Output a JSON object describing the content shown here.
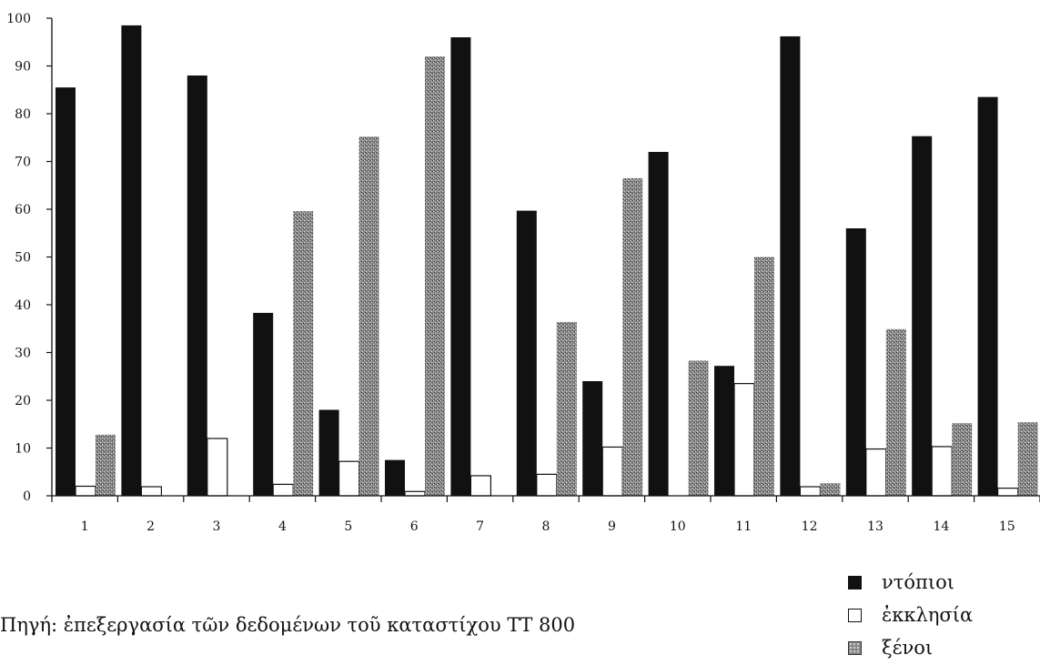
{
  "chart_data": {
    "type": "bar",
    "categories": [
      "1",
      "2",
      "3",
      "4",
      "5",
      "6",
      "7",
      "8",
      "9",
      "10",
      "11",
      "12",
      "13",
      "14",
      "15"
    ],
    "series": [
      {
        "name": "ντόπιοι",
        "color": "#111111",
        "pattern": "solid",
        "values": [
          85.5,
          98.5,
          88,
          38.3,
          18,
          7.5,
          96,
          59.7,
          24,
          72,
          27.2,
          96.2,
          56,
          75.3,
          83.5
        ]
      },
      {
        "name": "ἐκκλησία",
        "color": "#ffffff",
        "pattern": "outline",
        "values": [
          2,
          1.9,
          12,
          2.4,
          7.2,
          0.9,
          4.2,
          4.5,
          10.2,
          0,
          23.5,
          1.9,
          9.8,
          10.3,
          1.6
        ]
      },
      {
        "name": "ξένοι",
        "color": "#888888",
        "pattern": "stipple",
        "values": [
          12.8,
          0,
          0,
          59.6,
          75.2,
          92,
          0,
          36.4,
          66.5,
          28.3,
          50,
          2.6,
          34.9,
          15.2,
          15.4
        ]
      }
    ],
    "ylim": [
      0,
      100
    ],
    "yticks": [
      0,
      10,
      20,
      30,
      40,
      50,
      60,
      70,
      80,
      90,
      100
    ],
    "grid": false,
    "legend_position": "bottom-right",
    "source_note": "Πηγή: ἐπεξεργασία τῶν δεδομένων τοῦ καταστίχου ΤΤ 800"
  }
}
